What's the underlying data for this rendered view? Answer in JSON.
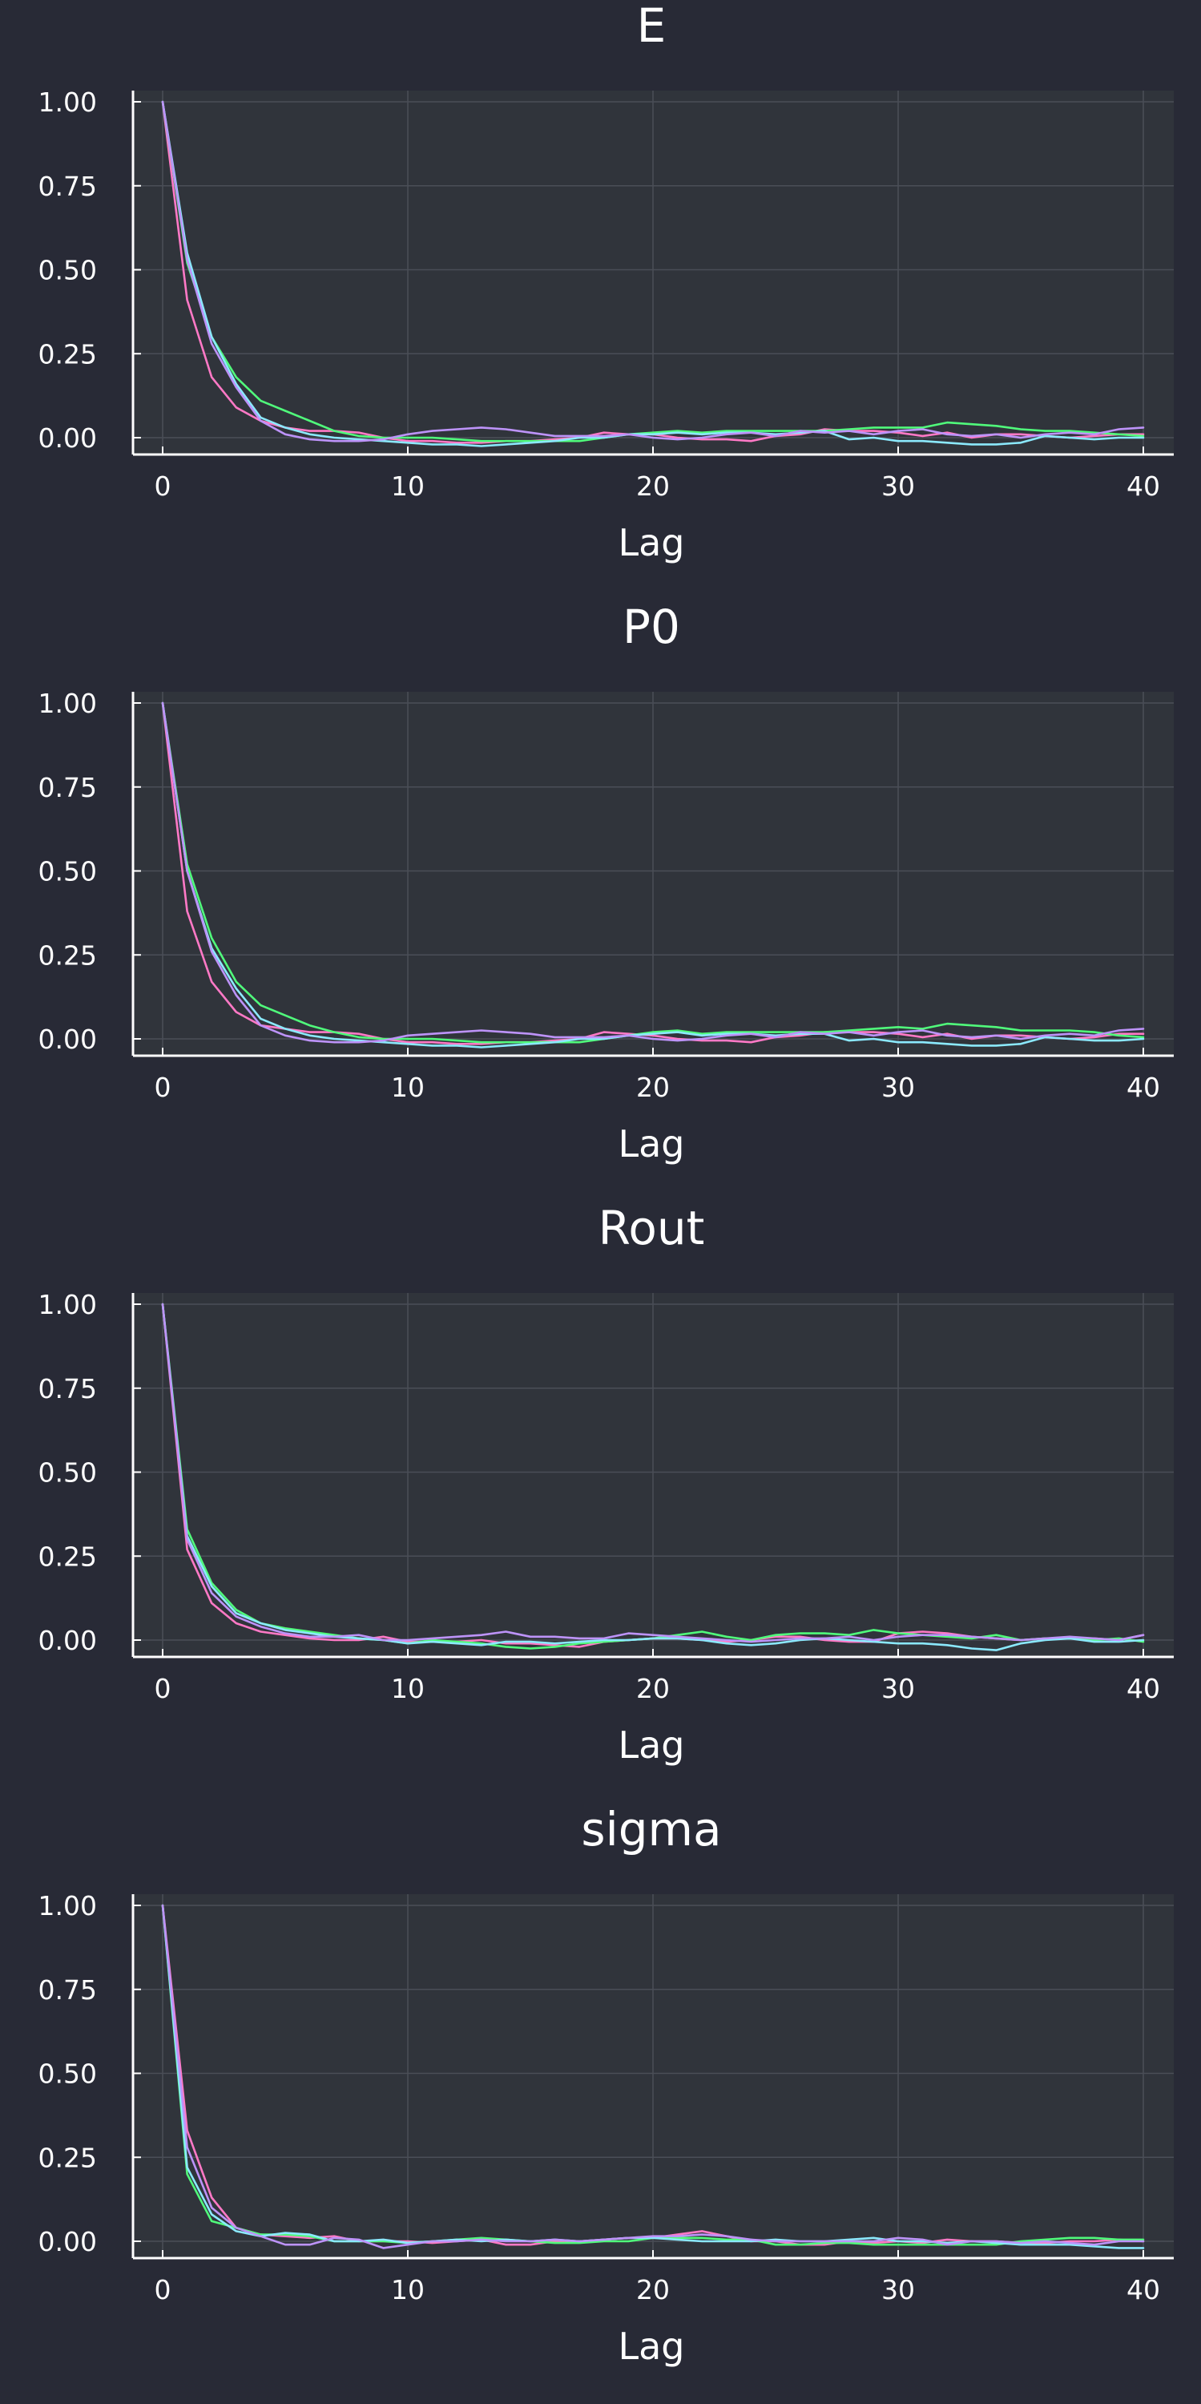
{
  "figure": {
    "background": "#282a36",
    "plot_background": "#30343b"
  },
  "chart_data": [
    {
      "type": "line",
      "title": "E",
      "xlabel": "Lag",
      "ylabel": "",
      "xlim": [
        0,
        40
      ],
      "ylim": [
        0,
        1
      ],
      "xticks": [
        "0",
        "10",
        "20",
        "30",
        "40"
      ],
      "yticks": [
        "0.00",
        "0.25",
        "0.50",
        "0.75",
        "1.00"
      ],
      "grid": true,
      "legend": "none",
      "x": [
        0,
        1,
        2,
        3,
        4,
        5,
        6,
        7,
        8,
        9,
        10,
        11,
        12,
        13,
        14,
        15,
        16,
        17,
        18,
        19,
        20,
        21,
        22,
        23,
        24,
        25,
        26,
        27,
        28,
        29,
        30,
        31,
        32,
        33,
        34,
        35,
        36,
        37,
        38,
        39,
        40
      ],
      "series": [
        {
          "color": "#ff79c6",
          "values": [
            1.0,
            0.41,
            0.18,
            0.09,
            0.05,
            0.03,
            0.02,
            0.02,
            0.015,
            0.0,
            -0.01,
            -0.01,
            -0.015,
            -0.015,
            -0.01,
            -0.01,
            -0.005,
            0.0,
            0.015,
            0.01,
            0.01,
            0.0,
            -0.005,
            -0.005,
            -0.01,
            0.005,
            0.01,
            0.025,
            0.02,
            0.02,
            0.015,
            0.005,
            0.015,
            0.0,
            0.01,
            0.01,
            0.005,
            0.0,
            0.005,
            0.01,
            0.01
          ]
        },
        {
          "color": "#50fa7b",
          "values": [
            1.0,
            0.52,
            0.3,
            0.18,
            0.11,
            0.08,
            0.05,
            0.02,
            0.005,
            0.0,
            0.0,
            0.0,
            -0.005,
            -0.01,
            -0.01,
            -0.01,
            -0.01,
            -0.01,
            0.0,
            0.01,
            0.015,
            0.02,
            0.015,
            0.02,
            0.02,
            0.02,
            0.02,
            0.02,
            0.025,
            0.03,
            0.03,
            0.03,
            0.045,
            0.04,
            0.035,
            0.025,
            0.02,
            0.02,
            0.015,
            0.01,
            0.005
          ]
        },
        {
          "color": "#8be9fd",
          "values": [
            1.0,
            0.55,
            0.3,
            0.16,
            0.06,
            0.03,
            0.01,
            0.0,
            -0.005,
            -0.01,
            -0.015,
            -0.02,
            -0.02,
            -0.025,
            -0.02,
            -0.015,
            -0.01,
            0.0,
            0.0,
            0.01,
            0.01,
            0.015,
            0.01,
            0.015,
            0.015,
            0.01,
            0.015,
            0.02,
            -0.005,
            0.0,
            -0.01,
            -0.01,
            -0.015,
            -0.02,
            -0.02,
            -0.015,
            0.005,
            0.0,
            -0.005,
            0.0,
            0.0
          ]
        },
        {
          "color": "#bd93f9",
          "values": [
            1.0,
            0.53,
            0.28,
            0.15,
            0.05,
            0.01,
            -0.005,
            -0.01,
            -0.01,
            -0.005,
            0.01,
            0.02,
            0.025,
            0.03,
            0.025,
            0.015,
            0.005,
            0.005,
            0.005,
            0.01,
            0.0,
            -0.005,
            0.0,
            0.01,
            0.015,
            0.005,
            0.02,
            0.015,
            0.02,
            0.01,
            0.02,
            0.025,
            0.01,
            0.005,
            0.01,
            0.0,
            0.01,
            0.015,
            0.01,
            0.025,
            0.03
          ]
        }
      ]
    },
    {
      "type": "line",
      "title": "P0",
      "xlabel": "Lag",
      "ylabel": "",
      "xlim": [
        0,
        40
      ],
      "ylim": [
        0,
        1
      ],
      "xticks": [
        "0",
        "10",
        "20",
        "30",
        "40"
      ],
      "yticks": [
        "0.00",
        "0.25",
        "0.50",
        "0.75",
        "1.00"
      ],
      "grid": true,
      "legend": "none",
      "x": [
        0,
        1,
        2,
        3,
        4,
        5,
        6,
        7,
        8,
        9,
        10,
        11,
        12,
        13,
        14,
        15,
        16,
        17,
        18,
        19,
        20,
        21,
        22,
        23,
        24,
        25,
        26,
        27,
        28,
        29,
        30,
        31,
        32,
        33,
        34,
        35,
        36,
        37,
        38,
        39,
        40
      ],
      "series": [
        {
          "color": "#ff79c6",
          "values": [
            1.0,
            0.38,
            0.17,
            0.08,
            0.04,
            0.03,
            0.02,
            0.02,
            0.015,
            0.0,
            -0.01,
            -0.01,
            -0.015,
            -0.015,
            -0.01,
            -0.01,
            -0.005,
            0.0,
            0.02,
            0.015,
            0.01,
            0.0,
            -0.005,
            -0.005,
            -0.01,
            0.005,
            0.01,
            0.02,
            0.02,
            0.02,
            0.015,
            0.005,
            0.015,
            0.0,
            0.01,
            0.01,
            0.005,
            0.0,
            0.005,
            0.015,
            0.015
          ]
        },
        {
          "color": "#50fa7b",
          "values": [
            1.0,
            0.52,
            0.3,
            0.17,
            0.1,
            0.07,
            0.04,
            0.02,
            0.005,
            0.0,
            0.0,
            0.0,
            -0.005,
            -0.01,
            -0.01,
            -0.01,
            -0.01,
            -0.01,
            0.0,
            0.01,
            0.02,
            0.025,
            0.015,
            0.02,
            0.02,
            0.02,
            0.02,
            0.02,
            0.025,
            0.03,
            0.035,
            0.03,
            0.045,
            0.04,
            0.035,
            0.025,
            0.025,
            0.025,
            0.02,
            0.01,
            0.005
          ]
        },
        {
          "color": "#8be9fd",
          "values": [
            1.0,
            0.5,
            0.27,
            0.15,
            0.06,
            0.03,
            0.01,
            0.0,
            -0.005,
            -0.01,
            -0.015,
            -0.02,
            -0.02,
            -0.025,
            -0.02,
            -0.015,
            -0.01,
            0.0,
            0.0,
            0.01,
            0.015,
            0.02,
            0.01,
            0.015,
            0.015,
            0.01,
            0.015,
            0.015,
            -0.005,
            0.0,
            -0.01,
            -0.01,
            -0.015,
            -0.02,
            -0.02,
            -0.015,
            0.005,
            0.0,
            -0.005,
            -0.005,
            0.0
          ]
        },
        {
          "color": "#bd93f9",
          "values": [
            1.0,
            0.5,
            0.26,
            0.13,
            0.04,
            0.01,
            -0.005,
            -0.01,
            -0.01,
            -0.005,
            0.01,
            0.015,
            0.02,
            0.025,
            0.02,
            0.015,
            0.005,
            0.005,
            0.005,
            0.01,
            0.0,
            -0.005,
            0.0,
            0.01,
            0.015,
            0.005,
            0.02,
            0.015,
            0.02,
            0.01,
            0.02,
            0.025,
            0.01,
            0.005,
            0.01,
            0.0,
            0.01,
            0.015,
            0.01,
            0.025,
            0.03
          ]
        }
      ]
    },
    {
      "type": "line",
      "title": "Rout",
      "xlabel": "Lag",
      "ylabel": "",
      "xlim": [
        0,
        40
      ],
      "ylim": [
        0,
        1
      ],
      "xticks": [
        "0",
        "10",
        "20",
        "30",
        "40"
      ],
      "yticks": [
        "0.00",
        "0.25",
        "0.50",
        "0.75",
        "1.00"
      ],
      "grid": true,
      "legend": "none",
      "x": [
        0,
        1,
        2,
        3,
        4,
        5,
        6,
        7,
        8,
        9,
        10,
        11,
        12,
        13,
        14,
        15,
        16,
        17,
        18,
        19,
        20,
        21,
        22,
        23,
        24,
        25,
        26,
        27,
        28,
        29,
        30,
        31,
        32,
        33,
        34,
        35,
        36,
        37,
        38,
        39,
        40
      ],
      "series": [
        {
          "color": "#ff79c6",
          "values": [
            1.0,
            0.27,
            0.11,
            0.05,
            0.025,
            0.015,
            0.005,
            0.0,
            0.0,
            0.01,
            -0.005,
            -0.005,
            -0.005,
            0.0,
            -0.01,
            -0.01,
            -0.015,
            -0.02,
            -0.005,
            0.0,
            0.005,
            0.005,
            0.0,
            -0.005,
            0.0,
            0.01,
            0.01,
            0.0,
            -0.005,
            -0.005,
            0.02,
            0.025,
            0.02,
            0.01,
            0.005,
            0.0,
            0.005,
            0.005,
            0.005,
            0.0,
            0.015
          ]
        },
        {
          "color": "#50fa7b",
          "values": [
            1.0,
            0.33,
            0.17,
            0.09,
            0.05,
            0.035,
            0.025,
            0.015,
            0.005,
            0.0,
            -0.01,
            0.0,
            -0.005,
            -0.01,
            -0.02,
            -0.025,
            -0.02,
            -0.01,
            -0.005,
            0.0,
            0.005,
            0.015,
            0.025,
            0.01,
            0.0,
            0.015,
            0.02,
            0.02,
            0.015,
            0.03,
            0.02,
            0.015,
            0.01,
            0.005,
            0.015,
            0.0,
            0.005,
            0.005,
            0.0,
            0.005,
            -0.005
          ]
        },
        {
          "color": "#8be9fd",
          "values": [
            1.0,
            0.31,
            0.16,
            0.08,
            0.05,
            0.03,
            0.02,
            0.01,
            0.005,
            0.0,
            -0.01,
            -0.005,
            -0.01,
            -0.015,
            -0.005,
            -0.005,
            -0.01,
            -0.005,
            0.0,
            0.0,
            0.005,
            0.005,
            0.0,
            -0.01,
            -0.015,
            -0.01,
            0.0,
            0.005,
            0.0,
            -0.005,
            -0.01,
            -0.01,
            -0.015,
            -0.025,
            -0.03,
            -0.01,
            0.0,
            0.005,
            -0.005,
            -0.005,
            0.0
          ]
        },
        {
          "color": "#bd93f9",
          "values": [
            1.0,
            0.3,
            0.14,
            0.07,
            0.04,
            0.02,
            0.01,
            0.01,
            0.015,
            0.0,
            0.0,
            0.005,
            0.01,
            0.015,
            0.025,
            0.01,
            0.01,
            0.005,
            0.005,
            0.02,
            0.015,
            0.01,
            0.005,
            0.0,
            -0.005,
            0.0,
            0.005,
            0.005,
            0.01,
            0.0,
            0.01,
            0.015,
            0.015,
            0.01,
            0.005,
            0.0,
            0.005,
            0.01,
            0.005,
            0.0,
            0.015
          ]
        }
      ]
    },
    {
      "type": "line",
      "title": "sigma",
      "xlabel": "Lag",
      "ylabel": "",
      "xlim": [
        0,
        40
      ],
      "ylim": [
        0,
        1
      ],
      "xticks": [
        "0",
        "10",
        "20",
        "30",
        "40"
      ],
      "yticks": [
        "0.00",
        "0.25",
        "0.50",
        "0.75",
        "1.00"
      ],
      "grid": true,
      "legend": "none",
      "x": [
        0,
        1,
        2,
        3,
        4,
        5,
        6,
        7,
        8,
        9,
        10,
        11,
        12,
        13,
        14,
        15,
        16,
        17,
        18,
        19,
        20,
        21,
        22,
        23,
        24,
        25,
        26,
        27,
        28,
        29,
        30,
        31,
        32,
        33,
        34,
        35,
        36,
        37,
        38,
        39,
        40
      ],
      "series": [
        {
          "color": "#ff79c6",
          "values": [
            1.0,
            0.33,
            0.13,
            0.04,
            0.02,
            0.015,
            0.01,
            0.015,
            0.0,
            0.0,
            0.0,
            -0.005,
            0.0,
            0.005,
            -0.01,
            -0.01,
            0.0,
            0.0,
            0.005,
            0.01,
            0.01,
            0.02,
            0.03,
            0.015,
            0.0,
            0.0,
            -0.01,
            -0.01,
            0.0,
            -0.005,
            0.0,
            -0.005,
            0.005,
            0.0,
            0.0,
            -0.005,
            -0.005,
            0.0,
            0.0,
            0.005,
            0.0
          ]
        },
        {
          "color": "#50fa7b",
          "values": [
            1.0,
            0.2,
            0.06,
            0.04,
            0.02,
            0.02,
            0.015,
            0.0,
            0.0,
            0.0,
            -0.005,
            0.0,
            0.005,
            0.01,
            0.005,
            0.0,
            -0.005,
            -0.005,
            0.0,
            0.0,
            0.01,
            0.01,
            0.01,
            0.005,
            0.005,
            -0.01,
            -0.01,
            -0.005,
            -0.005,
            -0.01,
            -0.01,
            -0.01,
            -0.01,
            -0.01,
            -0.01,
            0.0,
            0.005,
            0.01,
            0.01,
            0.005,
            0.005
          ]
        },
        {
          "color": "#8be9fd",
          "values": [
            1.0,
            0.22,
            0.08,
            0.03,
            0.015,
            0.025,
            0.02,
            0.0,
            0.0,
            0.005,
            -0.005,
            0.0,
            0.005,
            0.0,
            0.005,
            0.0,
            0.005,
            0.0,
            0.005,
            0.01,
            0.01,
            0.005,
            0.0,
            0.0,
            0.0,
            0.005,
            0.0,
            0.0,
            0.005,
            0.01,
            0.0,
            0.0,
            -0.005,
            0.0,
            -0.005,
            -0.01,
            -0.01,
            -0.01,
            -0.015,
            -0.02,
            -0.02
          ]
        },
        {
          "color": "#bd93f9",
          "values": [
            1.0,
            0.28,
            0.1,
            0.04,
            0.015,
            -0.01,
            -0.01,
            0.01,
            0.005,
            -0.02,
            -0.01,
            0.0,
            0.0,
            0.005,
            0.0,
            0.0,
            0.005,
            0.0,
            0.005,
            0.01,
            0.015,
            0.015,
            0.02,
            0.015,
            0.005,
            0.0,
            0.0,
            0.0,
            0.0,
            0.0,
            0.01,
            0.005,
            -0.01,
            0.0,
            0.0,
            -0.005,
            0.0,
            -0.005,
            -0.01,
            0.0,
            0.0
          ]
        }
      ]
    }
  ]
}
